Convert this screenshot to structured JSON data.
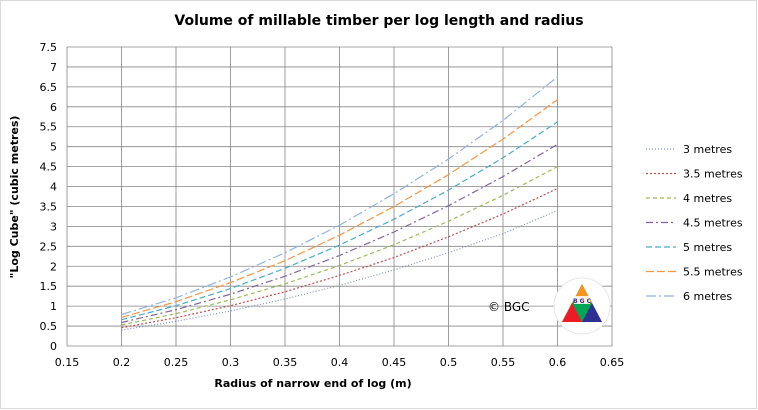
{
  "chart_data": {
    "type": "line",
    "title": "Volume of millable timber per log length and radius",
    "xlabel": "Radius of narrow end of log (m)",
    "ylabel": "\"Log Cube\" (cubic metres)",
    "xlim": [
      0.15,
      0.65
    ],
    "ylim": [
      0,
      7.5
    ],
    "xticks": [
      "0.15",
      "0.2",
      "0.25",
      "0.3",
      "0.35",
      "0.4",
      "0.45",
      "0.5",
      "0.55",
      "0.6",
      "0.65"
    ],
    "yticks": [
      "0",
      "0.5",
      "1",
      "1.5",
      "2",
      "2.5",
      "3",
      "3.5",
      "4",
      "4.5",
      "5",
      "5.5",
      "6",
      "6.5",
      "7",
      "7.5"
    ],
    "grid": true,
    "legend_position": "right",
    "x": [
      0.2,
      0.25,
      0.3,
      0.35,
      0.4,
      0.45,
      0.5,
      0.55,
      0.6
    ],
    "series": [
      {
        "name": "3 metres",
        "color": "#7f8fb6",
        "dash": "1,2",
        "values": [
          0.4,
          0.62,
          0.88,
          1.18,
          1.52,
          1.91,
          2.34,
          2.82,
          3.4
        ]
      },
      {
        "name": "3.5 metres",
        "color": "#c0504d",
        "dash": "2,2",
        "values": [
          0.46,
          0.71,
          1.01,
          1.36,
          1.77,
          2.22,
          2.74,
          3.31,
          3.95
        ]
      },
      {
        "name": "4 metres",
        "color": "#9bbb59",
        "dash": "4,3",
        "values": [
          0.53,
          0.81,
          1.16,
          1.56,
          2.02,
          2.54,
          3.13,
          3.78,
          4.5
        ]
      },
      {
        "name": "4.5 metres",
        "color": "#8064a2",
        "dash": "7,3,2,3",
        "values": [
          0.59,
          0.91,
          1.3,
          1.75,
          2.27,
          2.86,
          3.52,
          4.25,
          5.06
        ]
      },
      {
        "name": "5 metres",
        "color": "#4bacc6",
        "dash": "6,3",
        "values": [
          0.66,
          1.01,
          1.44,
          1.95,
          2.53,
          3.18,
          3.91,
          4.72,
          5.62
        ]
      },
      {
        "name": "5.5 metres",
        "color": "#f79646",
        "dash": "8,3",
        "values": [
          0.72,
          1.11,
          1.59,
          2.14,
          2.78,
          3.5,
          4.3,
          5.19,
          6.18
        ]
      },
      {
        "name": "6 metres",
        "color": "#8eb4e3",
        "dash": "10,3,2,3",
        "values": [
          0.79,
          1.21,
          1.73,
          2.34,
          3.03,
          3.82,
          4.69,
          5.66,
          6.75
        ]
      }
    ],
    "annotation": "© BGC"
  },
  "logo": {
    "text": "B G C",
    "colors": [
      "#ed1c24",
      "#00a651",
      "#2e3192",
      "#f7941d"
    ]
  }
}
